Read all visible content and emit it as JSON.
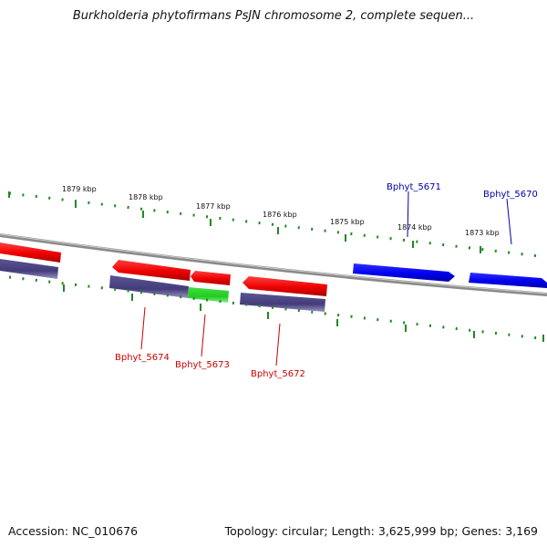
{
  "title": "Burkholderia phytofirmans PsJN chromosome 2, complete sequen...",
  "footer": {
    "accession": "Accession: NC_010676",
    "topology": "Topology: circular; Length: 3,625,999 bp; Genes: 3,169"
  },
  "colors": {
    "forward_gene": "#0000ee",
    "reverse_gene": "#ee0000",
    "rna_gene": "#22cc22",
    "cds_feature": "#443c7a",
    "backbone": "#8a8a8a",
    "ticks": "#228822",
    "forward_label": "#0000aa",
    "reverse_label": "#cc0000"
  },
  "tick_labels": [
    "1879 kbp",
    "1878 kbp",
    "1877 kbp",
    "1876 kbp",
    "1875 kbp",
    "1874 kbp",
    "1873 kbp"
  ],
  "genes": [
    {
      "name": "Bphyt_5671",
      "strand": "forward"
    },
    {
      "name": "Bphyt_5670",
      "strand": "forward"
    },
    {
      "name": "Bphyt_5674",
      "strand": "reverse"
    },
    {
      "name": "Bphyt_5673",
      "strand": "reverse"
    },
    {
      "name": "Bphyt_5672",
      "strand": "reverse"
    }
  ]
}
